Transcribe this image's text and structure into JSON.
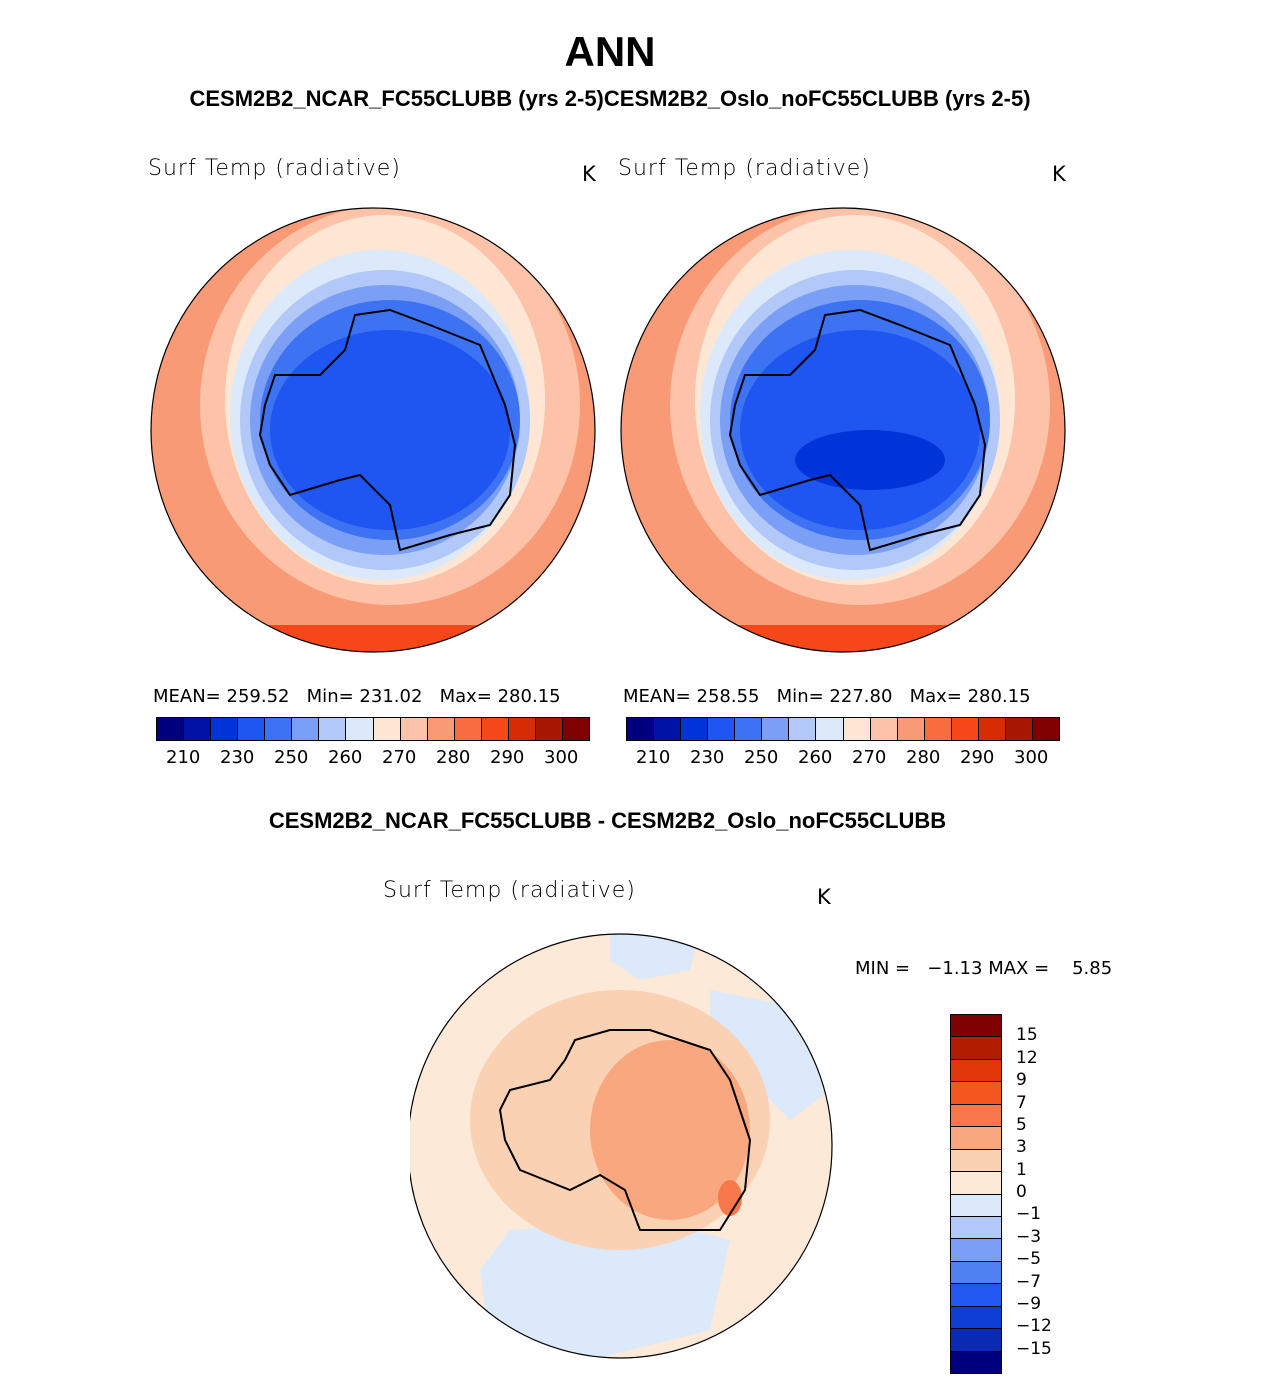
{
  "title": "ANN",
  "subtitle": "CESM2B2_NCAR_FC55CLUBB (yrs 2-5)CESM2B2_Oslo_noFC55CLUBB (yrs 2-5)",
  "diff_title": "CESM2B2_NCAR_FC55CLUBB - CESM2B2_Oslo_noFC55CLUBB",
  "panels": [
    {
      "variable": "Surf Temp (radiative)",
      "units": "K",
      "mean_label": "MEAN=",
      "mean": "259.52",
      "min_label": "Min=",
      "min": "231.02",
      "max_label": "Max=",
      "max": "280.15"
    },
    {
      "variable": "Surf Temp (radiative)",
      "units": "K",
      "mean_label": "MEAN=",
      "mean": "258.55",
      "min_label": "Min=",
      "min": "227.80",
      "max_label": "Max=",
      "max": "280.15"
    }
  ],
  "diff_panel": {
    "variable": "Surf Temp (radiative)",
    "units": "K",
    "min_label": "MIN =",
    "min": "−1.13",
    "max_label": "MAX =",
    "max": "5.85"
  },
  "colorbar_abs": {
    "colors": [
      "#00007f",
      "#0013a6",
      "#0033d8",
      "#1f55f0",
      "#3d73f3",
      "#7b9ff5",
      "#b1c8f8",
      "#dbe9fb",
      "#fde7d4",
      "#fcc3a8",
      "#f99a76",
      "#f76c40",
      "#f5471a",
      "#d62b05",
      "#a81702",
      "#7f0000"
    ],
    "ticks": [
      "210",
      "230",
      "250",
      "260",
      "270",
      "280",
      "290",
      "300"
    ]
  },
  "colorbar_diff": {
    "colors": [
      "#7f0000",
      "#b11d00",
      "#e0360a",
      "#f5561f",
      "#f7784a",
      "#f9a77f",
      "#fbd1b4",
      "#fde9d8",
      "#dbe9fb",
      "#b1c8f8",
      "#7b9ff5",
      "#4f80f1",
      "#2358f0",
      "#0f3ed6",
      "#0a2ab4",
      "#00007f"
    ],
    "ticks": [
      "15",
      "12",
      "9",
      "7",
      "5",
      "3",
      "1",
      "0",
      "−1",
      "−3",
      "−5",
      "−7",
      "−9",
      "−12",
      "−15"
    ]
  }
}
